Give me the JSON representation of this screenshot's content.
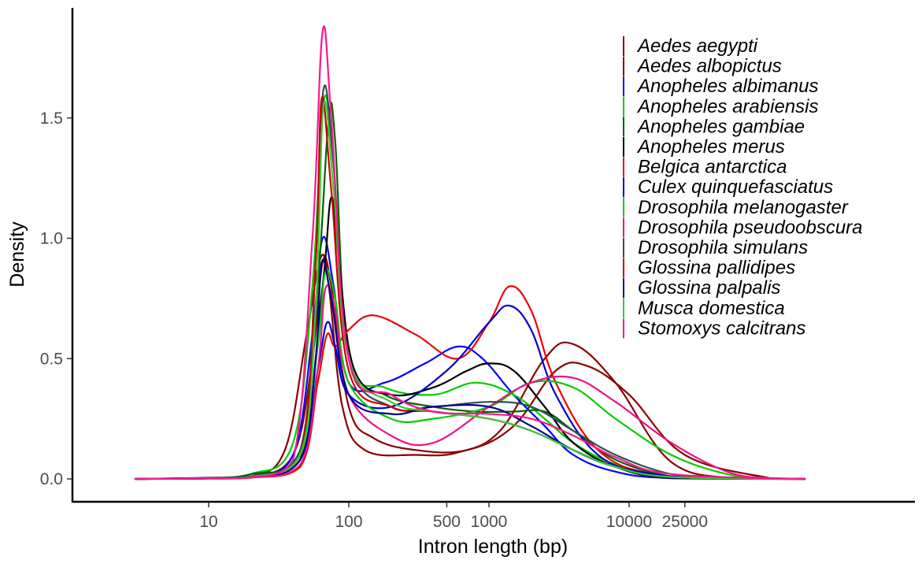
{
  "chart_data": {
    "type": "line",
    "title": "",
    "xlabel": "Intron length (bp)",
    "ylabel": "Density",
    "x_scale": "log10",
    "xlim": [
      2,
      200000
    ],
    "ylim": [
      0,
      1.9
    ],
    "x_ticks": [
      {
        "value": 10,
        "label": "10"
      },
      {
        "value": 100,
        "label": "100"
      },
      {
        "value": 500,
        "label": "500"
      },
      {
        "value": 1000,
        "label": "1000"
      },
      {
        "value": 10000,
        "label": "10000"
      },
      {
        "value": 25000,
        "label": "25000"
      }
    ],
    "y_ticks": [
      {
        "value": 0.0,
        "label": "0.0"
      },
      {
        "value": 0.5,
        "label": "0.5"
      },
      {
        "value": 1.0,
        "label": "1.0"
      },
      {
        "value": 1.5,
        "label": "1.5"
      }
    ],
    "grid": false,
    "legend_position": "top-right",
    "series": [
      {
        "name": "Aedes aegypti",
        "color": "#8b0000",
        "x": [
          3,
          10,
          20,
          40,
          55,
          65,
          75,
          100,
          150,
          300,
          700,
          1500,
          3000,
          5000,
          10000,
          25000,
          100000,
          180000
        ],
        "y": [
          0,
          0.003,
          0.008,
          0.1,
          0.5,
          0.9,
          0.8,
          0.3,
          0.17,
          0.12,
          0.12,
          0.22,
          0.45,
          0.47,
          0.35,
          0.1,
          0.004,
          0
        ]
      },
      {
        "name": "Aedes albopictus",
        "color": "#8b0000",
        "x": [
          3,
          10,
          20,
          35,
          50,
          63,
          72,
          90,
          130,
          300,
          600,
          1200,
          2500,
          4000,
          8000,
          20000,
          60000,
          180000
        ],
        "y": [
          0,
          0.003,
          0.01,
          0.12,
          0.6,
          0.92,
          0.8,
          0.3,
          0.12,
          0.1,
          0.11,
          0.2,
          0.5,
          0.56,
          0.4,
          0.07,
          0.002,
          0
        ]
      },
      {
        "name": "Anopheles albimanus",
        "color": "#0000ff",
        "x": [
          3,
          10,
          20,
          40,
          55,
          65,
          78,
          100,
          180,
          350,
          600,
          900,
          1500,
          2500,
          4000,
          8000,
          20000,
          180000
        ],
        "y": [
          0,
          0.005,
          0.01,
          0.1,
          0.6,
          1.0,
          0.8,
          0.4,
          0.4,
          0.48,
          0.55,
          0.5,
          0.35,
          0.22,
          0.1,
          0.03,
          0.003,
          0
        ]
      },
      {
        "name": "Anopheles arabiensis",
        "color": "#00cc00",
        "x": [
          3,
          10,
          20,
          40,
          55,
          66,
          78,
          100,
          180,
          400,
          800,
          1500,
          2500,
          4000,
          8000,
          20000,
          50000,
          180000
        ],
        "y": [
          0,
          0.004,
          0.02,
          0.15,
          0.8,
          1.57,
          1.3,
          0.5,
          0.38,
          0.35,
          0.4,
          0.35,
          0.25,
          0.15,
          0.06,
          0.01,
          0.001,
          0
        ]
      },
      {
        "name": "Anopheles gambiae",
        "color": "#006400",
        "x": [
          3,
          10,
          20,
          45,
          60,
          72,
          80,
          100,
          180,
          400,
          800,
          1500,
          2500,
          4000,
          8000,
          20000,
          50000,
          180000
        ],
        "y": [
          0,
          0.004,
          0.02,
          0.1,
          0.8,
          1.5,
          1.4,
          0.5,
          0.35,
          0.3,
          0.28,
          0.28,
          0.28,
          0.2,
          0.08,
          0.01,
          0.001,
          0
        ]
      },
      {
        "name": "Anopheles merus",
        "color": "#000000",
        "x": [
          3,
          10,
          20,
          45,
          65,
          75,
          85,
          110,
          200,
          400,
          700,
          1000,
          1500,
          2500,
          4000,
          8000,
          20000,
          180000
        ],
        "y": [
          0,
          0.004,
          0.01,
          0.08,
          0.8,
          1.17,
          0.9,
          0.45,
          0.35,
          0.38,
          0.45,
          0.48,
          0.45,
          0.3,
          0.15,
          0.05,
          0.005,
          0
        ]
      },
      {
        "name": "Belgica antarctica",
        "color": "#ee0000",
        "x": [
          3,
          10,
          20,
          45,
          60,
          70,
          80,
          100,
          150,
          300,
          600,
          1000,
          1400,
          2000,
          3000,
          6000,
          15000,
          60000,
          180000
        ],
        "y": [
          0,
          0.001,
          0.005,
          0.05,
          0.4,
          0.6,
          0.55,
          0.62,
          0.68,
          0.6,
          0.5,
          0.65,
          0.8,
          0.7,
          0.4,
          0.12,
          0.02,
          0.001,
          0
        ]
      },
      {
        "name": "Culex quinquefasciatus",
        "color": "#0000cd",
        "x": [
          3,
          10,
          20,
          45,
          60,
          70,
          80,
          100,
          200,
          500,
          1000,
          1400,
          2000,
          3000,
          6000,
          15000,
          60000,
          180000
        ],
        "y": [
          0,
          0.002,
          0.006,
          0.08,
          0.45,
          0.65,
          0.55,
          0.35,
          0.3,
          0.45,
          0.65,
          0.72,
          0.62,
          0.35,
          0.1,
          0.02,
          0.001,
          0
        ]
      },
      {
        "name": "Drosophila melanogaster",
        "color": "#00cd00",
        "x": [
          3,
          10,
          20,
          45,
          60,
          68,
          80,
          100,
          200,
          400,
          1000,
          2000,
          4000,
          8000,
          20000,
          50000,
          100000,
          180000
        ],
        "y": [
          0,
          0.003,
          0.008,
          0.1,
          0.55,
          0.86,
          0.75,
          0.4,
          0.25,
          0.25,
          0.3,
          0.4,
          0.38,
          0.25,
          0.1,
          0.02,
          0.003,
          0
        ]
      },
      {
        "name": "Drosophila pseudoobscura",
        "color": "#ee1289",
        "x": [
          3,
          10,
          20,
          45,
          60,
          68,
          80,
          100,
          200,
          400,
          1000,
          2000,
          4000,
          8000,
          20000,
          50000,
          100000,
          180000
        ],
        "y": [
          0,
          0.002,
          0.006,
          0.06,
          0.45,
          0.79,
          0.7,
          0.35,
          0.18,
          0.15,
          0.3,
          0.4,
          0.42,
          0.32,
          0.15,
          0.03,
          0.003,
          0
        ]
      },
      {
        "name": "Drosophila simulans",
        "color": "#2f4f4f",
        "x": [
          3,
          10,
          20,
          45,
          58,
          66,
          78,
          100,
          200,
          400,
          1000,
          2000,
          4000,
          8000,
          20000,
          50000,
          180000
        ],
        "y": [
          0,
          0.003,
          0.01,
          0.12,
          0.9,
          1.62,
          1.3,
          0.5,
          0.3,
          0.3,
          0.32,
          0.3,
          0.2,
          0.1,
          0.02,
          0.002,
          0
        ]
      },
      {
        "name": "Glossina pallidipes",
        "color": "#cd0000",
        "x": [
          3,
          10,
          20,
          45,
          58,
          64,
          75,
          100,
          200,
          400,
          1000,
          2000,
          4000,
          8000,
          20000,
          180000
        ],
        "y": [
          0,
          0.002,
          0.008,
          0.1,
          0.9,
          1.58,
          1.2,
          0.45,
          0.3,
          0.28,
          0.25,
          0.2,
          0.12,
          0.05,
          0.008,
          0
        ]
      },
      {
        "name": "Glossina palpalis",
        "color": "#00008b",
        "x": [
          3,
          10,
          20,
          45,
          58,
          64,
          75,
          100,
          200,
          400,
          1000,
          2000,
          4000,
          8000,
          20000,
          180000
        ],
        "y": [
          0,
          0.002,
          0.008,
          0.08,
          0.5,
          0.9,
          0.75,
          0.35,
          0.27,
          0.3,
          0.3,
          0.22,
          0.12,
          0.05,
          0.008,
          0
        ]
      },
      {
        "name": "Musca domestica",
        "color": "#32cd32",
        "x": [
          3,
          10,
          20,
          45,
          58,
          66,
          78,
          100,
          200,
          400,
          1000,
          2000,
          4000,
          8000,
          20000,
          180000
        ],
        "y": [
          0,
          0.003,
          0.008,
          0.1,
          0.7,
          1.55,
          1.2,
          0.5,
          0.32,
          0.28,
          0.25,
          0.2,
          0.12,
          0.05,
          0.008,
          0
        ]
      },
      {
        "name": "Stomoxys calcitrans",
        "color": "#ff1493",
        "x": [
          3,
          10,
          20,
          40,
          55,
          65,
          75,
          100,
          200,
          400,
          1000,
          2000,
          4000,
          8000,
          20000,
          180000
        ],
        "y": [
          0,
          0.002,
          0.006,
          0.08,
          1.0,
          1.86,
          1.5,
          0.5,
          0.35,
          0.28,
          0.27,
          0.25,
          0.18,
          0.09,
          0.02,
          0
        ]
      }
    ]
  }
}
